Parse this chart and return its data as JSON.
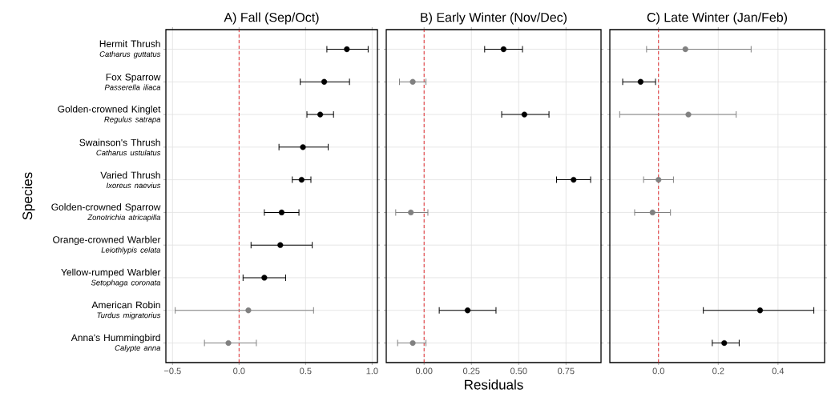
{
  "chart_data": [
    {
      "type": "scatter",
      "title": "A) Fall (Sep/Oct)",
      "ylabel": "Species",
      "orientation": "horizontal",
      "marker": "circle",
      "grid": true,
      "categories": [
        "Hermit Thrush *Catharus guttatus*",
        "Fox Sparrow *Passerella iliaca*",
        "Golden-crowned Kinglet *Regulus satrapa*",
        "Swainson's Thrush *Catharus ustulatus*",
        "Varied Thrush *Ixoreus naevius*",
        "Golden-crowned Sparrow *Zonotrichia atricapilla*",
        "Orange-crowned Warbler *Leiothlypis celata*",
        "Yellow-rumped Warbler *Setophaga coronata*",
        "American Robin *Turdus migratorius*",
        "Anna's Hummingbird *Calypte anna*"
      ],
      "values": [
        0.81,
        0.64,
        0.61,
        0.48,
        0.47,
        0.32,
        0.31,
        0.19,
        0.07,
        -0.08
      ],
      "errors": [
        [
          0.66,
          0.97
        ],
        [
          0.46,
          0.83
        ],
        [
          0.51,
          0.71
        ],
        [
          0.3,
          0.67
        ],
        [
          0.4,
          0.54
        ],
        [
          0.19,
          0.45
        ],
        [
          0.09,
          0.55
        ],
        [
          0.03,
          0.35
        ],
        [
          -0.48,
          0.56
        ],
        [
          -0.26,
          0.13
        ]
      ],
      "colors": [
        "#000000",
        "#000000",
        "#000000",
        "#000000",
        "#000000",
        "#000000",
        "#000000",
        "#000000",
        "#808080",
        "#808080"
      ],
      "xlim": [
        -0.55,
        1.04
      ],
      "xticks": [
        {
          "value": -0.5,
          "label": "−0.5"
        },
        {
          "value": 0,
          "label": "0.0"
        },
        {
          "value": 0.5,
          "label": "0.5"
        },
        {
          "value": 1,
          "label": "1.0"
        }
      ],
      "ref_lines": [
        {
          "axis": "x",
          "value": 0,
          "color": "#e0191c",
          "line_style": "dashed"
        }
      ]
    },
    {
      "type": "scatter",
      "title": "B) Early Winter (Nov/Dec)",
      "xlabel": "Residuals",
      "orientation": "horizontal",
      "marker": "circle",
      "grid": true,
      "tick_labels": "x",
      "categories": [
        null,
        null,
        null,
        null,
        null,
        null,
        null,
        null,
        null,
        null
      ],
      "values": [
        0.42,
        -0.06,
        0.53,
        null,
        0.79,
        -0.07,
        null,
        null,
        0.23,
        -0.06
      ],
      "errors": [
        [
          0.32,
          0.52
        ],
        [
          -0.13,
          0.01
        ],
        [
          0.41,
          0.66
        ],
        null,
        [
          0.7,
          0.88
        ],
        [
          -0.15,
          0.02
        ],
        null,
        null,
        [
          0.08,
          0.38
        ],
        [
          -0.14,
          0.01
        ]
      ],
      "colors": [
        "#000000",
        "#808080",
        "#000000",
        null,
        "#000000",
        "#808080",
        null,
        null,
        "#000000",
        "#808080"
      ],
      "xlim": [
        -0.2,
        0.935
      ],
      "xticks": [
        {
          "value": 0,
          "label": "0.00"
        },
        {
          "value": 0.25,
          "label": "0.25"
        },
        {
          "value": 0.5,
          "label": "0.50"
        },
        {
          "value": 0.75,
          "label": "0.75"
        }
      ],
      "ref_lines": [
        {
          "axis": "x",
          "value": 0,
          "color": "#e0191c",
          "line_style": "dashed"
        }
      ]
    },
    {
      "type": "scatter",
      "title": "C) Late Winter (Jan/Feb)",
      "orientation": "horizontal",
      "marker": "circle",
      "grid": true,
      "tick_labels": "x",
      "categories": [
        null,
        null,
        null,
        null,
        null,
        null,
        null,
        null,
        null,
        null
      ],
      "values": [
        0.09,
        -0.06,
        0.1,
        null,
        0.0,
        -0.02,
        null,
        null,
        0.34,
        0.22
      ],
      "errors": [
        [
          -0.04,
          0.31
        ],
        [
          -0.12,
          -0.01
        ],
        [
          -0.13,
          0.26
        ],
        null,
        [
          -0.05,
          0.05
        ],
        [
          -0.08,
          0.04
        ],
        null,
        null,
        [
          0.15,
          0.52
        ],
        [
          0.18,
          0.27
        ]
      ],
      "colors": [
        "#808080",
        "#000000",
        "#808080",
        null,
        "#808080",
        "#808080",
        null,
        null,
        "#000000",
        "#000000"
      ],
      "xlim": [
        -0.163,
        0.556
      ],
      "xticks": [
        {
          "value": 0,
          "label": "0.0"
        },
        {
          "value": 0.2,
          "label": "0.2"
        },
        {
          "value": 0.4,
          "label": "0.4"
        }
      ],
      "ref_lines": [
        {
          "axis": "x",
          "value": 0,
          "color": "#e0191c",
          "line_style": "dashed"
        }
      ]
    }
  ]
}
